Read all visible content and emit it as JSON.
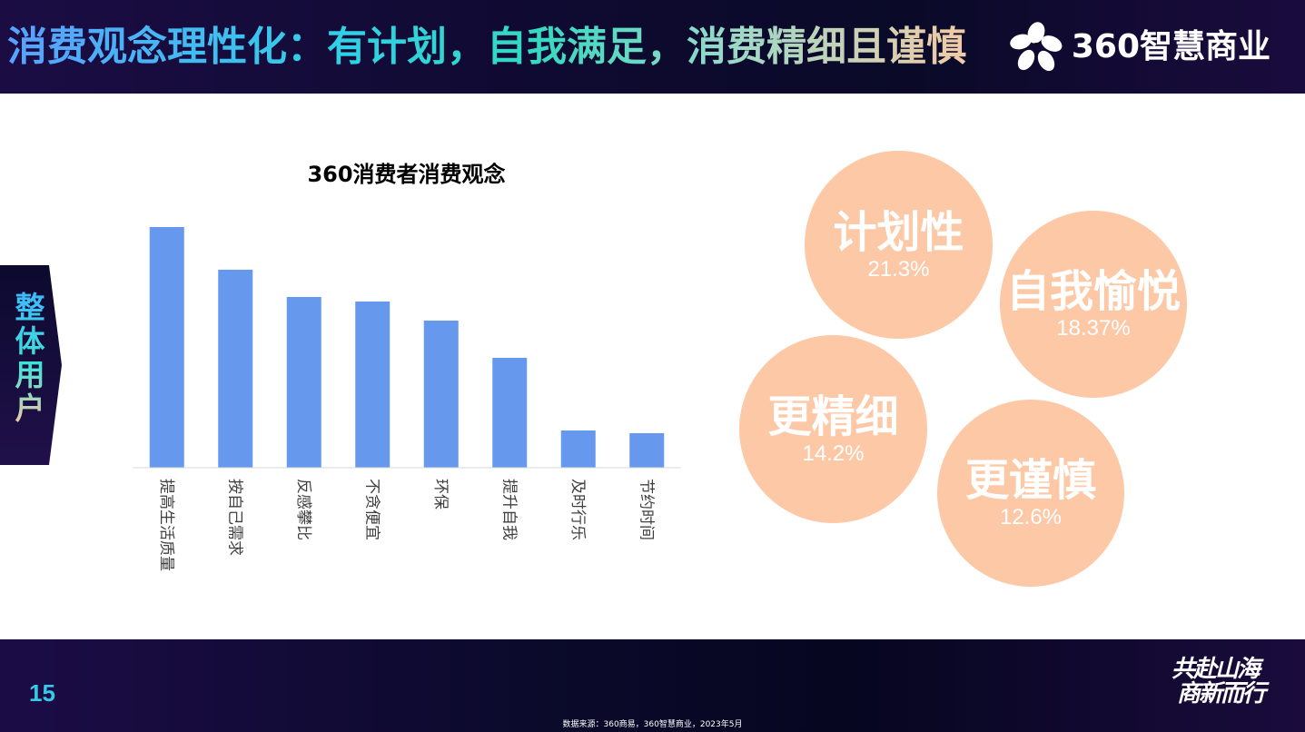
{
  "header": {
    "title": "消费观念理性化：有计划，自我满足，消费精细且谨慎",
    "brand_text": "360智慧商业"
  },
  "side_tab": {
    "label": "整体用户"
  },
  "chart_data": {
    "type": "bar",
    "title": "360消费者消费观念",
    "categories": [
      "提高生活质量",
      "按自己需求",
      "反感攀比",
      "不贪便宜",
      "环保",
      "提升自我",
      "及时行乐",
      "节约时间"
    ],
    "values": [
      26.5,
      21.8,
      18.8,
      18.3,
      16.2,
      12.1,
      4.1,
      3.8
    ],
    "ylim": [
      0,
      28
    ],
    "xlabel": "",
    "ylabel": "",
    "bar_color": "#6699ee",
    "grid": false
  },
  "bubbles": [
    {
      "label": "计划性",
      "value": "21.3%"
    },
    {
      "label": "自我愉悦",
      "value": "18.37%"
    },
    {
      "label": "更精细",
      "value": "14.2%"
    },
    {
      "label": "更谨慎",
      "value": "12.6%"
    }
  ],
  "colors": {
    "bubble": "#fdc8a6",
    "accent": "#36c9e8",
    "header_bg": "#0e0a30"
  },
  "footer": {
    "page_number": "15",
    "source": "数据来源：360商易，360智慧商业，2023年5月",
    "slogan_line1": "共赴山海",
    "slogan_line2": "商新而行"
  }
}
